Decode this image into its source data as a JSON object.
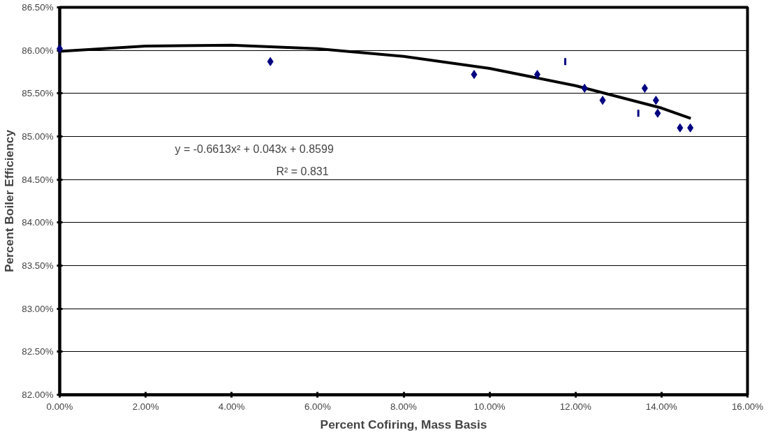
{
  "chart_data": {
    "type": "scatter",
    "xlabel": "Percent Cofiring, Mass Basis",
    "ylabel": "Percent Boiler Efficiency",
    "x": [
      0.0,
      4.9,
      9.64,
      11.11,
      12.21,
      12.63,
      13.61,
      13.87,
      13.91,
      14.43,
      14.67
    ],
    "series": [
      {
        "color": "#000080",
        "marker": "diamond",
        "values": [
          86.02,
          85.87,
          85.72,
          85.72,
          85.56,
          85.42,
          85.56,
          85.42,
          85.27,
          85.1,
          85.1
        ]
      },
      {
        "color": "#000080",
        "marker": "square",
        "x": [
          11.76,
          13.46
        ],
        "values": [
          85.87,
          85.27
        ]
      },
      {
        "type": "line",
        "color": "#000000",
        "x": [
          0,
          2,
          4,
          6,
          8,
          10,
          12,
          13,
          14,
          14.68
        ],
        "values": [
          85.99,
          86.05,
          86.06,
          86.02,
          85.93,
          85.79,
          85.59,
          85.46,
          85.33,
          85.21
        ]
      }
    ],
    "annotations": [
      "y = -0.6613x² + 0.043x + 0.8599",
      "R² = 0.831"
    ],
    "xlim": [
      0,
      16
    ],
    "ylim": [
      82,
      86.5
    ],
    "xticks": [
      {
        "value": 0,
        "label": "0.00%"
      },
      {
        "value": 2,
        "label": "2.00%"
      },
      {
        "value": 4,
        "label": "4.00%"
      },
      {
        "value": 6,
        "label": "6.00%"
      },
      {
        "value": 8,
        "label": "8.00%"
      },
      {
        "value": 10,
        "label": "10.00%"
      },
      {
        "value": 12,
        "label": "12.00%"
      },
      {
        "value": 14,
        "label": "14.00%"
      },
      {
        "value": 16,
        "label": "16.00%"
      }
    ],
    "yticks": [
      {
        "value": 82,
        "label": "82.00%"
      },
      {
        "value": 82.5,
        "label": "82.50%"
      },
      {
        "value": 83,
        "label": "83.00%"
      },
      {
        "value": 83.5,
        "label": "83.50%"
      },
      {
        "value": 84,
        "label": "84.00%"
      },
      {
        "value": 84.5,
        "label": "84.50%"
      },
      {
        "value": 85,
        "label": "85.00%"
      },
      {
        "value": 85.5,
        "label": "85.50%"
      },
      {
        "value": 86,
        "label": "86.00%"
      },
      {
        "value": 86.5,
        "label": "86.50%"
      }
    ],
    "grid": "y"
  }
}
